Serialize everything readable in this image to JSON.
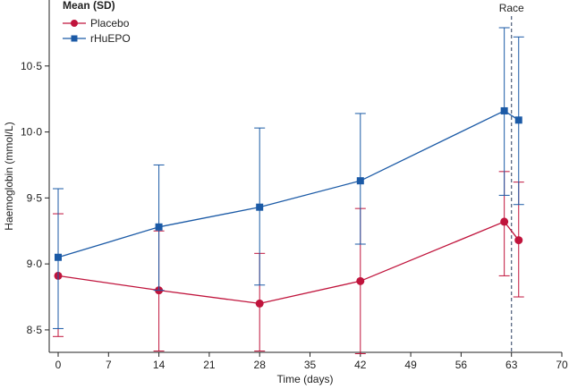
{
  "chart_data": {
    "type": "line",
    "title": "",
    "xlabel": "Time (days)",
    "ylabel": "Haemoglobin (mmol/L)",
    "xlim": [
      0,
      70
    ],
    "ylim": [
      8.33,
      11.0
    ],
    "x_ticks": [
      0,
      7,
      14,
      21,
      28,
      35,
      42,
      49,
      56,
      63,
      70
    ],
    "x_tick_labels": [
      "0",
      "7",
      "14",
      "21",
      "28",
      "35",
      "42",
      "49",
      "56",
      "63",
      "70"
    ],
    "y_ticks": [
      8.5,
      9.0,
      9.5,
      10.0,
      10.5
    ],
    "y_tick_labels": [
      "8·5",
      "9·0",
      "9·5",
      "10·0",
      "10·5"
    ],
    "legend_title": "Mean (SD)",
    "legend_position": "top-left",
    "grid": false,
    "series": [
      {
        "name": "Placebo",
        "color": "#c0143c",
        "marker": "circle",
        "x": [
          0,
          14,
          28,
          42,
          62,
          64
        ],
        "y": [
          8.91,
          8.8,
          8.7,
          8.87,
          9.32,
          9.18
        ],
        "err_low": [
          8.45,
          8.34,
          8.34,
          8.32,
          8.91,
          8.75
        ],
        "err_high": [
          9.38,
          9.25,
          9.08,
          9.42,
          9.7,
          9.62
        ]
      },
      {
        "name": "rHuEPO",
        "color": "#1b5aa6",
        "marker": "square",
        "x": [
          0,
          14,
          28,
          42,
          62,
          64
        ],
        "y": [
          9.05,
          9.28,
          9.43,
          9.63,
          10.16,
          10.09
        ],
        "err_low": [
          8.51,
          8.8,
          8.84,
          9.15,
          9.52,
          9.45
        ],
        "err_high": [
          9.57,
          9.75,
          10.03,
          10.14,
          10.79,
          10.72
        ]
      }
    ],
    "annotations": [
      {
        "text": "Race",
        "x": 63,
        "style": "dashed-vertical-line"
      }
    ]
  }
}
